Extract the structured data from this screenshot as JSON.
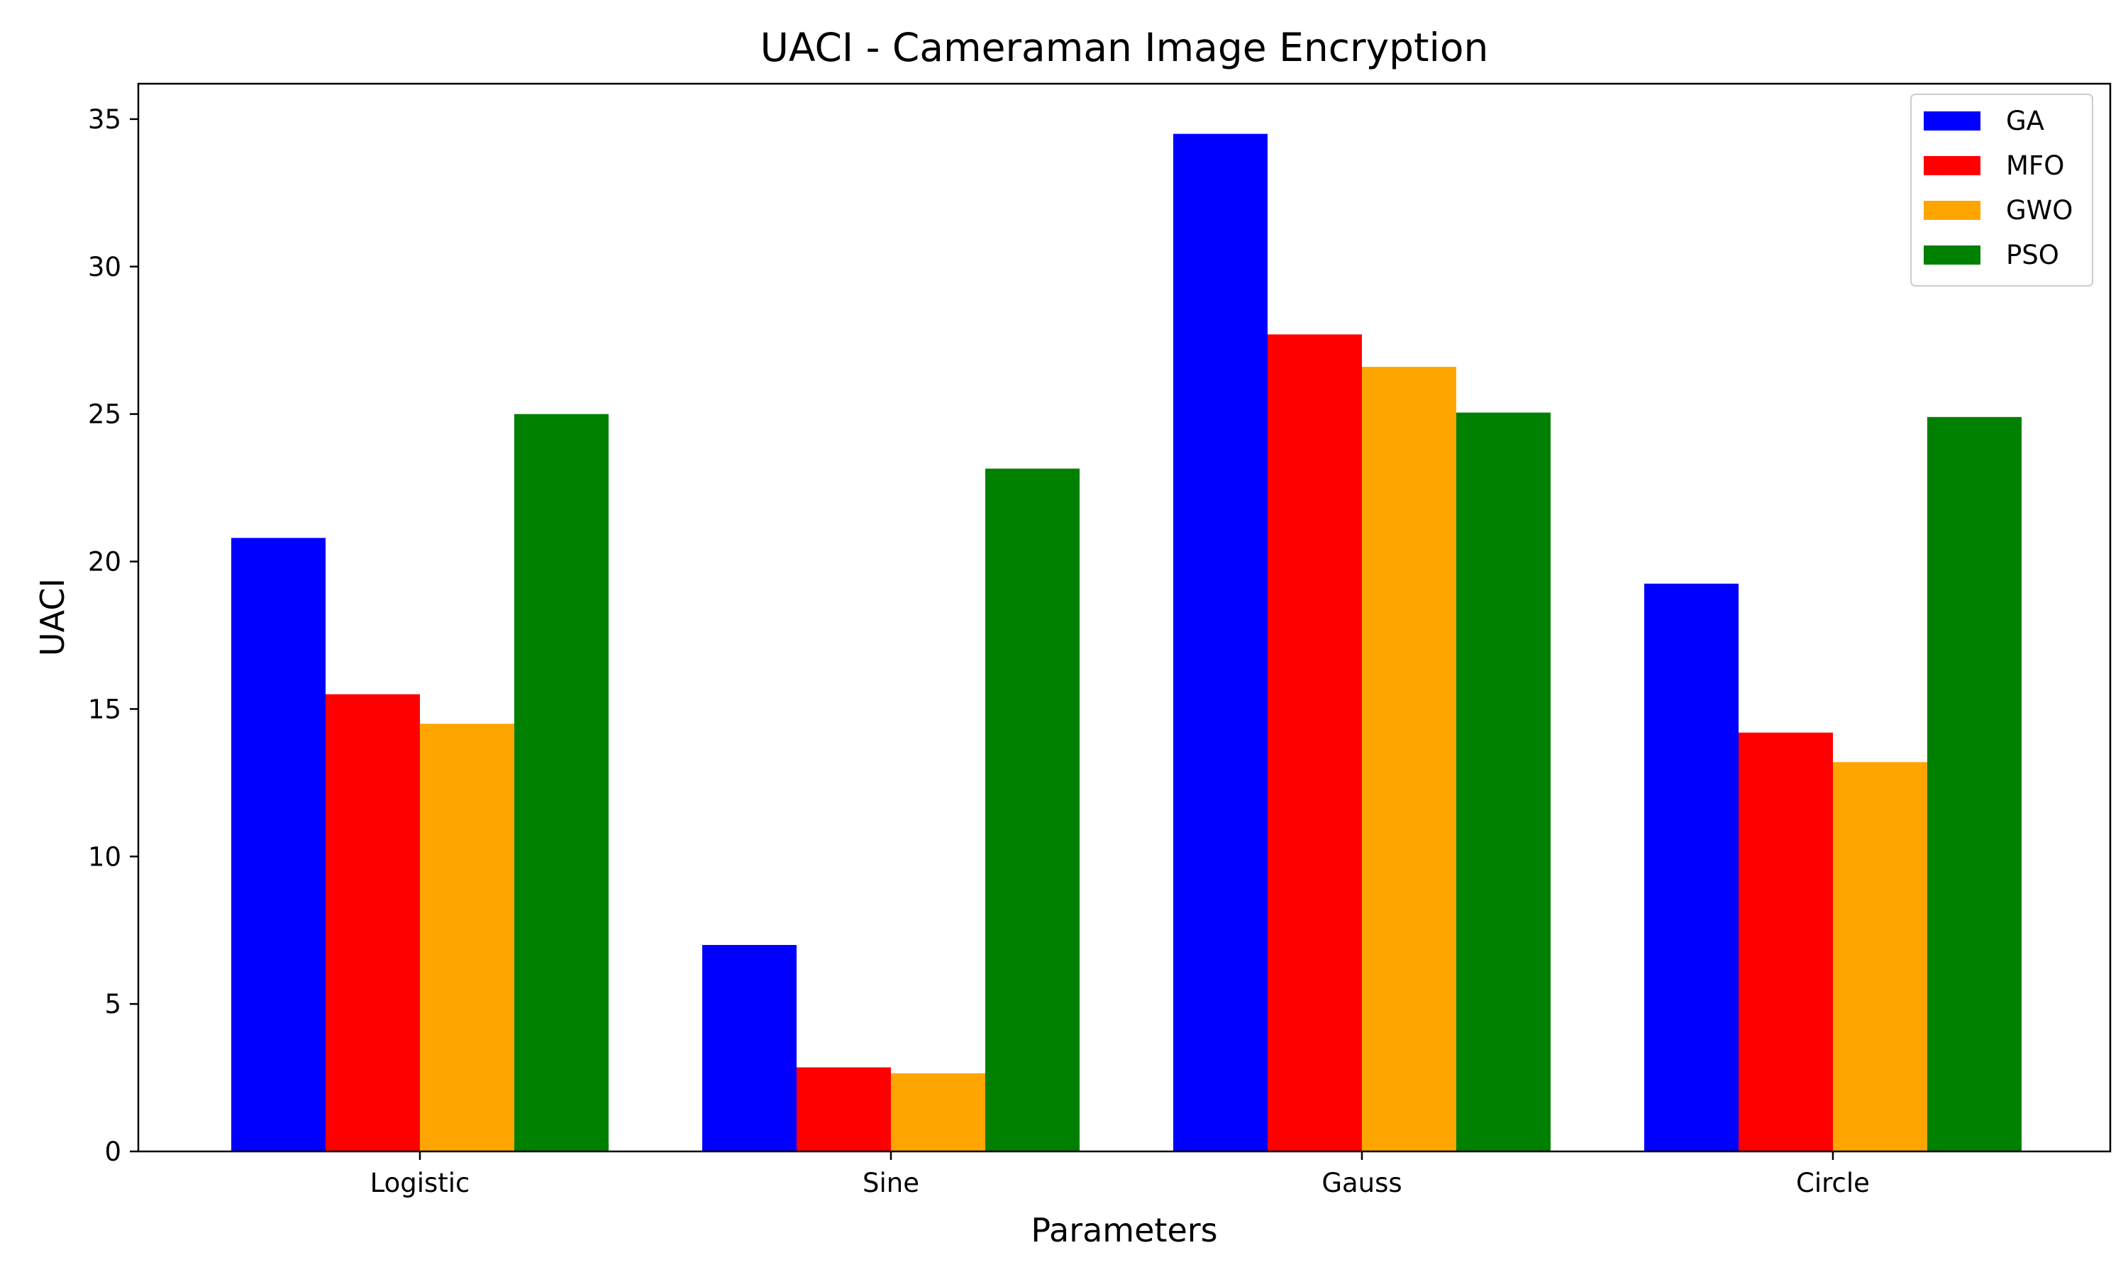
{
  "chart_data": {
    "type": "bar",
    "title": "UACI - Cameraman Image Encryption",
    "xlabel": "Parameters",
    "ylabel": "UACI",
    "categories": [
      "Logistic",
      "Sine",
      "Gauss",
      "Circle"
    ],
    "series": [
      {
        "name": "GA",
        "color": "#0000ff",
        "values": [
          20.8,
          7.0,
          34.5,
          19.25
        ]
      },
      {
        "name": "MFO",
        "color": "#ff0000",
        "values": [
          15.5,
          2.85,
          27.7,
          14.2
        ]
      },
      {
        "name": "GWO",
        "color": "#ffa500",
        "values": [
          14.5,
          2.65,
          26.6,
          13.2
        ]
      },
      {
        "name": "PSO",
        "color": "#008000",
        "values": [
          25.0,
          23.15,
          25.05,
          24.9
        ]
      }
    ],
    "ylim": [
      0,
      36.2
    ],
    "yticks": [
      0,
      5,
      10,
      15,
      20,
      25,
      30,
      35
    ],
    "grid": false,
    "legend_position": "top-right"
  }
}
